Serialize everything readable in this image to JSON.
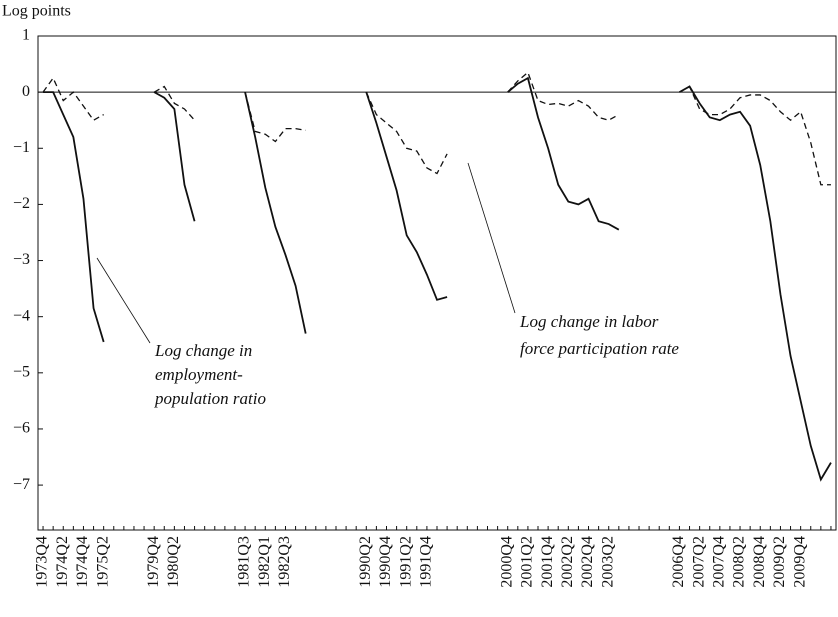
{
  "chart_data": {
    "type": "line",
    "y_axis_label": "Log points",
    "categories": [
      "1973Q4",
      null,
      "1974Q2",
      null,
      "1974Q4",
      null,
      "1975Q2",
      null,
      null,
      null,
      null,
      "1979Q4",
      null,
      "1980Q2",
      null,
      null,
      null,
      null,
      null,
      null,
      "1981Q3",
      null,
      "1982Q1",
      null,
      "1982Q3",
      null,
      null,
      null,
      null,
      null,
      null,
      null,
      "1990Q2",
      null,
      "1990Q4",
      null,
      "1991Q2",
      null,
      "1991Q4",
      null,
      null,
      null,
      null,
      null,
      null,
      null,
      "2000Q4",
      null,
      "2001Q2",
      null,
      "2001Q4",
      null,
      "2002Q2",
      null,
      "2002Q4",
      null,
      "2003Q2",
      null,
      null,
      null,
      null,
      null,
      null,
      "2006Q4",
      null,
      "2007Q2",
      null,
      "2007Q4",
      null,
      "2008Q2",
      null,
      "2008Q4",
      null,
      "2009Q2",
      null,
      "2009Q4",
      null,
      null,
      null
    ],
    "series": [
      {
        "name": "Log change in employment-population ratio",
        "color": "#111111",
        "dash": false,
        "values": [
          0,
          0,
          -0.4,
          -0.8,
          -1.9,
          -3.85,
          -4.45,
          null,
          null,
          null,
          null,
          0,
          -0.1,
          -0.3,
          -1.65,
          -2.3,
          null,
          null,
          null,
          null,
          0,
          -0.8,
          -1.7,
          -2.4,
          -2.9,
          -3.45,
          -4.3,
          null,
          null,
          null,
          null,
          null,
          0,
          -0.55,
          -1.15,
          -1.75,
          -2.55,
          -2.85,
          -3.25,
          -3.7,
          -3.65,
          null,
          null,
          null,
          null,
          null,
          0,
          0.15,
          0.25,
          -0.45,
          -1.0,
          -1.65,
          -1.95,
          -2.0,
          -1.9,
          -2.3,
          -2.35,
          -2.45,
          null,
          null,
          null,
          null,
          null,
          0,
          0.1,
          -0.2,
          -0.45,
          -0.5,
          -0.4,
          -0.35,
          -0.6,
          -1.3,
          -2.3,
          -3.6,
          -4.7,
          -5.5,
          -6.3,
          -6.9,
          -6.6
        ]
      },
      {
        "name": "Log change in labor force participation rate",
        "color": "#111111",
        "dash": true,
        "values": [
          0,
          0.25,
          -0.15,
          0,
          -0.25,
          -0.5,
          -0.4,
          null,
          null,
          null,
          null,
          0,
          0.1,
          -0.2,
          -0.3,
          -0.5,
          null,
          null,
          null,
          null,
          0,
          -0.7,
          -0.75,
          -0.88,
          -0.65,
          -0.65,
          -0.68,
          null,
          null,
          null,
          null,
          null,
          0,
          -0.4,
          -0.55,
          -0.7,
          -1.0,
          -1.05,
          -1.35,
          -1.45,
          -1.1,
          null,
          null,
          null,
          null,
          null,
          0,
          0.2,
          0.35,
          -0.15,
          -0.22,
          -0.2,
          -0.25,
          -0.15,
          -0.25,
          -0.45,
          -0.5,
          -0.4,
          null,
          null,
          null,
          null,
          null,
          0,
          0.1,
          -0.3,
          -0.4,
          -0.4,
          -0.3,
          -0.1,
          -0.05,
          -0.05,
          -0.15,
          -0.35,
          -0.5,
          -0.35,
          -0.9,
          -1.65,
          -1.65
        ]
      }
    ],
    "annotations": [
      {
        "lines": [
          "Log change in",
          "employment-",
          "population ratio"
        ]
      },
      {
        "lines": [
          "Log change in labor",
          "force participation rate"
        ]
      }
    ],
    "ylim": [
      -7.8,
      1
    ],
    "yticks": [
      1,
      0,
      {
        "value": -1,
        "label": "−1"
      },
      {
        "value": -2,
        "label": "−2"
      },
      {
        "value": -3,
        "label": "−3"
      },
      {
        "value": -4,
        "label": "−4"
      },
      {
        "value": -5,
        "label": "−5"
      },
      {
        "value": -6,
        "label": "−6"
      },
      {
        "value": -7,
        "label": "−7"
      }
    ],
    "grid": false
  }
}
